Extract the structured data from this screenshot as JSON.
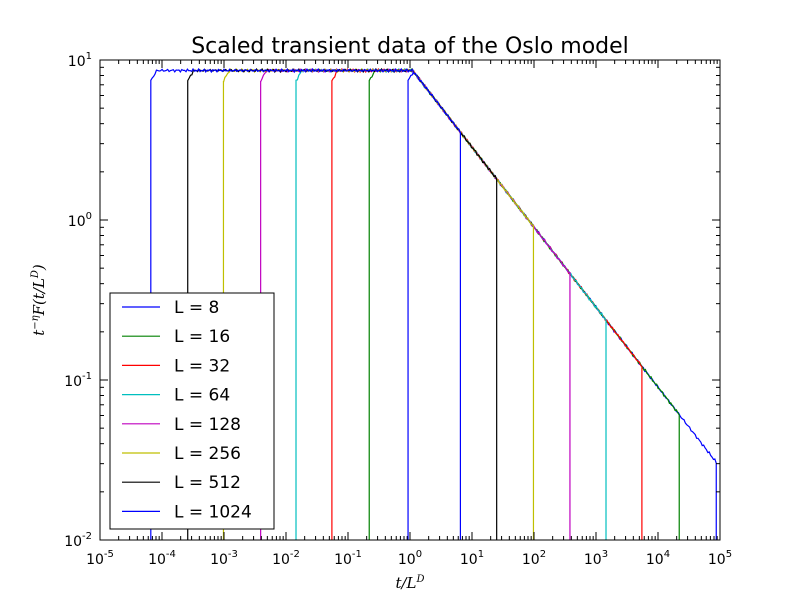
{
  "chart_data": {
    "type": "line",
    "title": "Scaled transient data of the Oslo model",
    "xlabel": "t/L^D",
    "ylabel": "t^{-η}F(t/L^D)",
    "xscale": "log",
    "yscale": "log",
    "xlim": [
      1e-05,
      100000
    ],
    "ylim": [
      0.01,
      10
    ],
    "grid": false,
    "legend_position": "lower-left",
    "x_ticks": [
      {
        "base": "10",
        "exp": "-5"
      },
      {
        "base": "10",
        "exp": "-4"
      },
      {
        "base": "10",
        "exp": "-3"
      },
      {
        "base": "10",
        "exp": "-2"
      },
      {
        "base": "10",
        "exp": "-1"
      },
      {
        "base": "10",
        "exp": "0"
      },
      {
        "base": "10",
        "exp": "1"
      },
      {
        "base": "10",
        "exp": "2"
      },
      {
        "base": "10",
        "exp": "3"
      },
      {
        "base": "10",
        "exp": "4"
      },
      {
        "base": "10",
        "exp": "5"
      }
    ],
    "y_ticks": [
      {
        "base": "10",
        "exp": "-2"
      },
      {
        "base": "10",
        "exp": "-1"
      },
      {
        "base": "10",
        "exp": "0"
      },
      {
        "base": "10",
        "exp": "1"
      }
    ],
    "model": {
      "plateau_y": 8.6,
      "crossover_x": 1.1,
      "slope": -0.5
    },
    "series": [
      {
        "name": "L = 8",
        "color": "#0000ff",
        "x_start": 0.93,
        "x_end": 87000
      },
      {
        "name": "L = 16",
        "color": "#008000",
        "x_start": 0.22,
        "x_end": 22000
      },
      {
        "name": "L = 32",
        "color": "#ff0000",
        "x_start": 0.055,
        "x_end": 5500
      },
      {
        "name": "L = 64",
        "color": "#00bfbf",
        "x_start": 0.0145,
        "x_end": 1450
      },
      {
        "name": "L = 128",
        "color": "#bf00bf",
        "x_start": 0.0039,
        "x_end": 380
      },
      {
        "name": "L = 256",
        "color": "#bfbf00",
        "x_start": 0.00098,
        "x_end": 98
      },
      {
        "name": "L = 512",
        "color": "#000000",
        "x_start": 0.00026,
        "x_end": 25
      },
      {
        "name": "L = 1024",
        "color": "#0000ff",
        "x_start": 6.6e-05,
        "x_end": 6.5
      }
    ]
  }
}
